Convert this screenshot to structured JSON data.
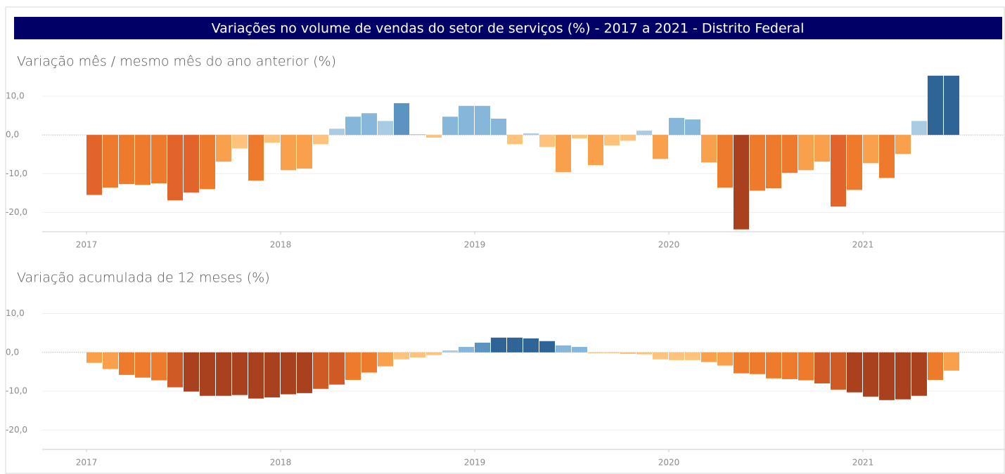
{
  "header": {
    "title": "Variações no volume de vendas do setor de serviços (%) - 2017 a 2021 - Distrito Federal"
  },
  "chart_data": [
    {
      "type": "bar",
      "title": "Variação mês / mesmo mês do ano anterior (%)",
      "categories": [
        "2017",
        null,
        null,
        null,
        null,
        null,
        null,
        null,
        null,
        null,
        null,
        null,
        "2018",
        null,
        null,
        null,
        null,
        null,
        null,
        null,
        null,
        null,
        null,
        null,
        "2019",
        null,
        null,
        null,
        null,
        null,
        null,
        null,
        null,
        null,
        null,
        null,
        "2020",
        null,
        null,
        null,
        null,
        null,
        null,
        null,
        null,
        null,
        null,
        null,
        "2021",
        null,
        null,
        null,
        null,
        null
      ],
      "values": [
        -15.5,
        -13.6,
        -12.7,
        -12.9,
        -12.5,
        -16.9,
        -14.9,
        -14.0,
        -6.9,
        -3.5,
        -11.8,
        -2.0,
        -9.1,
        -8.7,
        -2.4,
        1.6,
        4.7,
        5.6,
        3.6,
        8.2,
        0.2,
        -0.7,
        4.7,
        7.5,
        7.5,
        4.2,
        -2.4,
        0.4,
        -3.1,
        -9.6,
        -0.9,
        -7.8,
        -2.7,
        -1.5,
        1.1,
        -6.2,
        4.4,
        4.0,
        -7.1,
        -13.6,
        -24.4,
        -14.4,
        -13.8,
        -9.8,
        -9.1,
        -6.9,
        -18.5,
        -14.2,
        -7.3,
        -11.1,
        -4.9,
        3.6,
        15.3,
        15.3
      ],
      "ylim": [
        -25,
        15.8
      ],
      "yticks": [
        {
          "value": -20,
          "label": "-20,0"
        },
        {
          "value": -10,
          "label": "-10,0"
        },
        {
          "value": 0,
          "label": "0,0"
        },
        {
          "value": 10,
          "label": "10,0"
        }
      ],
      "grid": true,
      "colors": {
        "negative": [
          "#fdc27c",
          "#f9a04c",
          "#ee7a2c",
          "#e2642a",
          "#a9411f"
        ],
        "positive": [
          "#a9cbe4",
          "#86b7da",
          "#5b93c3",
          "#2f6496"
        ]
      }
    },
    {
      "type": "bar",
      "title": "Variação acumulada de 12 meses (%)",
      "categories": [
        "2017",
        null,
        null,
        null,
        null,
        null,
        null,
        null,
        null,
        null,
        null,
        null,
        "2018",
        null,
        null,
        null,
        null,
        null,
        null,
        null,
        null,
        null,
        null,
        null,
        "2019",
        null,
        null,
        null,
        null,
        null,
        null,
        null,
        null,
        null,
        null,
        null,
        "2020",
        null,
        null,
        null,
        null,
        null,
        null,
        null,
        null,
        null,
        null,
        null,
        "2021",
        null,
        null,
        null,
        null,
        null
      ],
      "values": [
        -2.7,
        -4.3,
        -5.8,
        -6.5,
        -7.2,
        -9.0,
        -10.1,
        -11.2,
        -11.2,
        -11.0,
        -11.9,
        -11.6,
        -10.8,
        -10.5,
        -9.4,
        -8.3,
        -7.1,
        -5.2,
        -3.6,
        -1.8,
        -1.3,
        -0.7,
        0.5,
        1.4,
        2.5,
        3.8,
        3.8,
        3.6,
        2.9,
        1.8,
        1.4,
        -0.2,
        -0.2,
        -0.4,
        -0.5,
        -1.8,
        -2.0,
        -2.0,
        -2.5,
        -3.4,
        -5.4,
        -5.6,
        -6.7,
        -6.9,
        -7.2,
        -8.0,
        -9.6,
        -10.3,
        -11.4,
        -12.3,
        -12.1,
        -11.2,
        -7.1,
        -4.7
      ],
      "ylim": [
        -25,
        15.7
      ],
      "yticks": [
        {
          "value": -20,
          "label": "-20,0"
        },
        {
          "value": -10,
          "label": "-10,0"
        },
        {
          "value": 0,
          "label": "0,0"
        },
        {
          "value": 10,
          "label": "10,0"
        }
      ],
      "grid": true,
      "colors": {
        "negative": [
          "#fdc27c",
          "#f9a04c",
          "#ee7a2c",
          "#cf5a25",
          "#a9411f"
        ],
        "positive": [
          "#a9cbe4",
          "#86b7da",
          "#5b93c3",
          "#2f6496"
        ]
      }
    }
  ]
}
